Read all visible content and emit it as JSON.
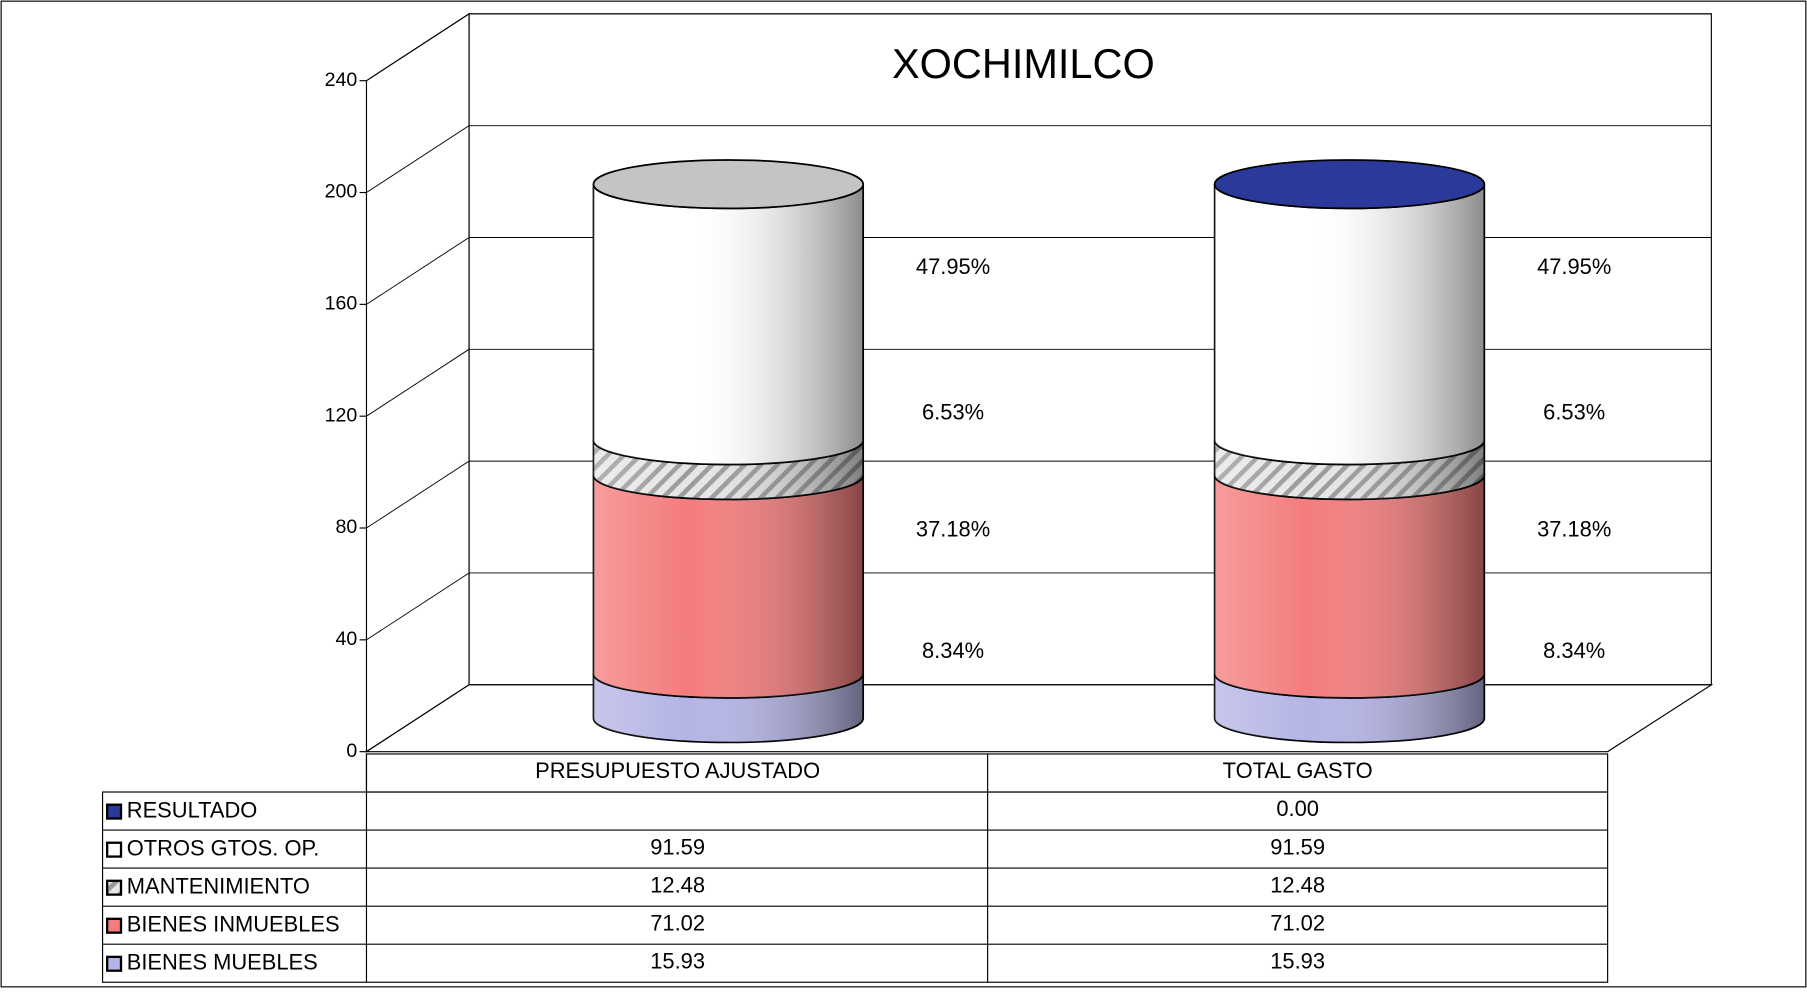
{
  "chart_data": {
    "type": "bar",
    "title": "XOCHIMILCO",
    "categories": [
      "PRESUPUESTO AJUSTADO",
      "TOTAL  GASTO"
    ],
    "series": [
      {
        "name": "BIENES MUEBLES",
        "color": "#b4b4e6",
        "values": [
          15.93,
          15.93
        ],
        "percents": [
          8.34,
          8.34
        ],
        "percent_labels": [
          "8.34%",
          "8.34%"
        ]
      },
      {
        "name": "BIENES INMUEBLES",
        "color": "#f47c7c",
        "values": [
          71.02,
          71.02
        ],
        "percents": [
          37.18,
          37.18
        ],
        "percent_labels": [
          "37.18%",
          "37.18%"
        ]
      },
      {
        "name": "MANTENIMIENTO",
        "color": "#cfcfcf",
        "values": [
          12.48,
          12.48
        ],
        "percents": [
          6.53,
          6.53
        ],
        "percent_labels": [
          "6.53%",
          "6.53%"
        ]
      },
      {
        "name": "OTROS GTOS. OP.",
        "color": "#ffffff",
        "values": [
          91.59,
          91.59
        ],
        "percents": [
          47.95,
          47.95
        ],
        "percent_labels": [
          "47.95%",
          "47.95%"
        ]
      },
      {
        "name": "RESULTADO",
        "color": "#2b3a9a",
        "values": [
          null,
          0
        ],
        "value_labels": [
          null,
          "0.00"
        ]
      }
    ],
    "ylim": [
      0,
      240
    ],
    "yticks": [
      0,
      40,
      80,
      120,
      160,
      200,
      240
    ],
    "grid": true
  }
}
